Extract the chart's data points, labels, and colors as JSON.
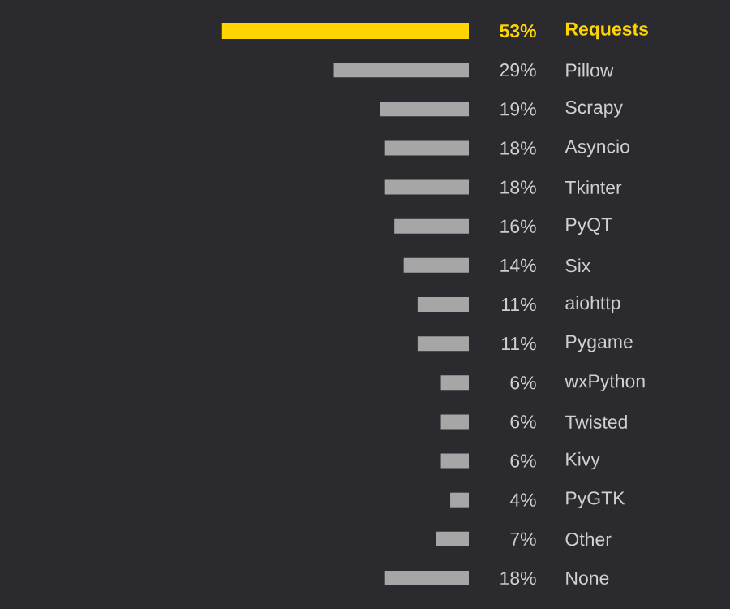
{
  "chart_data": {
    "type": "bar",
    "orientation": "horizontal",
    "categories": [
      "Requests",
      "Pillow",
      "Scrapy",
      "Asyncio",
      "Tkinter",
      "PyQT",
      "Six",
      "aiohttp",
      "Pygame",
      "wxPython",
      "Twisted",
      "Kivy",
      "PyGTK",
      "Other",
      "None"
    ],
    "values": [
      53,
      29,
      19,
      18,
      18,
      16,
      14,
      11,
      11,
      6,
      6,
      6,
      4,
      7,
      18
    ],
    "value_labels": [
      "53%",
      "29%",
      "19%",
      "18%",
      "18%",
      "16%",
      "14%",
      "11%",
      "11%",
      "6%",
      "6%",
      "6%",
      "4%",
      "7%",
      "18%"
    ],
    "colors": [
      "#ffd400",
      "#a6a6a6",
      "#a6a6a6",
      "#a6a6a6",
      "#a6a6a6",
      "#a6a6a6",
      "#a6a6a6",
      "#a6a6a6",
      "#a6a6a6",
      "#a6a6a6",
      "#a6a6a6",
      "#a6a6a6",
      "#a6a6a6",
      "#a6a6a6",
      "#a6a6a6"
    ]
  }
}
